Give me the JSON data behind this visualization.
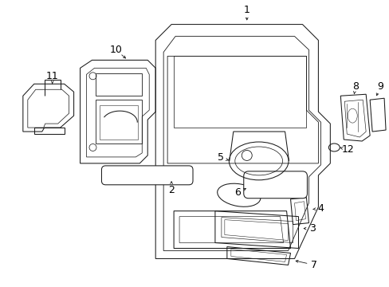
{
  "background_color": "#ffffff",
  "line_color": "#1a1a1a",
  "text_color": "#000000",
  "figsize": [
    4.89,
    3.6
  ],
  "dpi": 100,
  "lw": 0.75
}
